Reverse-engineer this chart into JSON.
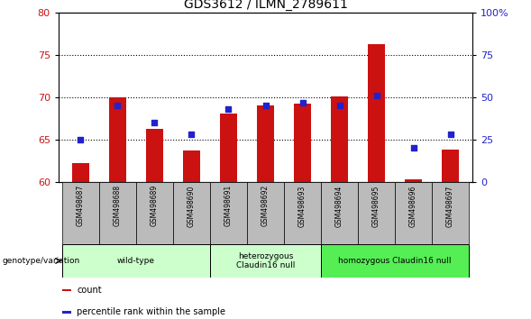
{
  "title": "GDS3612 / ILMN_2789611",
  "samples": [
    "GSM498687",
    "GSM498688",
    "GSM498689",
    "GSM498690",
    "GSM498691",
    "GSM498692",
    "GSM498693",
    "GSM498694",
    "GSM498695",
    "GSM498696",
    "GSM498697"
  ],
  "bar_values": [
    62.2,
    70.0,
    66.3,
    63.7,
    68.1,
    69.0,
    69.3,
    70.1,
    76.3,
    60.3,
    63.8
  ],
  "bar_base": 60,
  "percentile_values": [
    25,
    45,
    35,
    28,
    43,
    45,
    47,
    45,
    51,
    20,
    28
  ],
  "left_ylim": [
    60,
    80
  ],
  "left_yticks": [
    60,
    65,
    70,
    75,
    80
  ],
  "right_ylim": [
    0,
    100
  ],
  "right_yticks": [
    0,
    25,
    50,
    75,
    100
  ],
  "right_yticklabels": [
    "0",
    "25",
    "50",
    "75",
    "100%"
  ],
  "bar_color": "#cc1111",
  "percentile_color": "#2222cc",
  "left_tick_color": "#cc1111",
  "right_tick_color": "#2222cc",
  "grid_color": "black",
  "plot_bg": "#ffffff",
  "sample_bg": "#bbbbbb",
  "group_boundaries": [
    {
      "start": 0,
      "end": 3,
      "label": "wild-type",
      "color": "#ccffcc"
    },
    {
      "start": 4,
      "end": 6,
      "label": "heterozygous\nClaudin16 null",
      "color": "#ccffcc"
    },
    {
      "start": 7,
      "end": 10,
      "label": "homozygous Claudin16 null",
      "color": "#55ee55"
    }
  ],
  "legend_items": [
    {
      "label": "count",
      "color": "#cc1111"
    },
    {
      "label": "percentile rank within the sample",
      "color": "#2222cc"
    }
  ],
  "genotype_label": "genotype/variation"
}
